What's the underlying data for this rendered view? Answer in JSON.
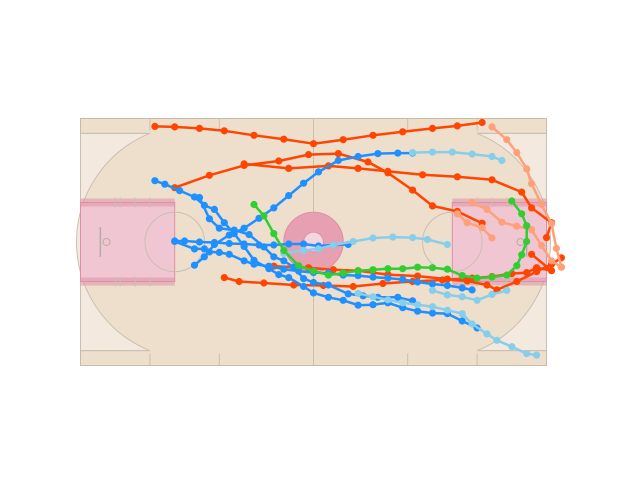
{
  "chart_data": {
    "type": "scatter",
    "title": "",
    "xlabel": "",
    "ylabel": "",
    "court": {
      "length_ft": 94,
      "width_ft": 50,
      "grid": false,
      "colors": {
        "floor": "#eddfcc",
        "arc_area": "#f3e9df",
        "paint": "#f0c6d3",
        "paint_border": "#de8fa6",
        "center_circle": "#e6a0b2",
        "lines": "#cbbfb0",
        "frame": "#c8bba8"
      }
    },
    "series": [
      {
        "color": "#ff4500",
        "points": [
          [
            15,
            48.4
          ],
          [
            19,
            48.3
          ],
          [
            24,
            48.0
          ],
          [
            29,
            47.5
          ],
          [
            35,
            46.6
          ],
          [
            41,
            45.8
          ],
          [
            47,
            44.9
          ],
          [
            53,
            45.7
          ],
          [
            59,
            46.6
          ],
          [
            65,
            47.3
          ],
          [
            71,
            48.0
          ],
          [
            76,
            48.5
          ],
          [
            81,
            49.2
          ]
        ]
      },
      {
        "color": "#ff4500",
        "points": [
          [
            19,
            36.0
          ],
          [
            26,
            38.5
          ],
          [
            33,
            40.5
          ],
          [
            40,
            41.4
          ],
          [
            46,
            42.7
          ],
          [
            52,
            42.9
          ],
          [
            58,
            41.2
          ],
          [
            62,
            39.0
          ],
          [
            67,
            35.5
          ],
          [
            71,
            32.3
          ],
          [
            76,
            31.2
          ],
          [
            81,
            28.8
          ]
        ]
      },
      {
        "color": "#ff4500",
        "points": [
          [
            33,
            40.8
          ],
          [
            42,
            39.9
          ],
          [
            50,
            40.4
          ],
          [
            56,
            39.9
          ],
          [
            62,
            39.3
          ],
          [
            69,
            38.6
          ],
          [
            76,
            38.2
          ],
          [
            83,
            37.6
          ],
          [
            89,
            35.1
          ],
          [
            91,
            31.9
          ],
          [
            95,
            28.9
          ],
          [
            94,
            25.9
          ]
        ]
      },
      {
        "color": "#ff4500",
        "points": [
          [
            39,
            20.1
          ],
          [
            46,
            19.8
          ],
          [
            51,
            19.4
          ],
          [
            56,
            19.2
          ],
          [
            62,
            18.4
          ],
          [
            68,
            18.1
          ],
          [
            74,
            17.5
          ],
          [
            78,
            17.1
          ],
          [
            82,
            16.3
          ],
          [
            84,
            15.3
          ],
          [
            88,
            17.0
          ],
          [
            92,
            19.0
          ],
          [
            95,
            20.5
          ],
          [
            97,
            21.8
          ]
        ]
      },
      {
        "color": "#ff4500",
        "points": [
          [
            29,
            17.8
          ],
          [
            32,
            17.0
          ],
          [
            37,
            16.7
          ],
          [
            43,
            16.3
          ],
          [
            49,
            16.2
          ],
          [
            55,
            16.0
          ],
          [
            61,
            16.6
          ],
          [
            67,
            17.0
          ],
          [
            73,
            17.3
          ],
          [
            79,
            17.7
          ],
          [
            83,
            18.0
          ],
          [
            87,
            18.6
          ],
          [
            90,
            18.8
          ],
          [
            92,
            19.8
          ],
          [
            95,
            19.2
          ],
          [
            91,
            22.5
          ]
        ]
      },
      {
        "color": "#ffa07a",
        "points": [
          [
            83,
            48.3
          ],
          [
            86,
            45.7
          ],
          [
            88,
            43.1
          ],
          [
            90,
            39.8
          ],
          [
            91,
            36.8
          ],
          [
            93,
            32.6
          ],
          [
            95,
            28.7
          ],
          [
            96,
            23.7
          ],
          [
            97,
            19.9
          ]
        ]
      },
      {
        "color": "#ffa07a",
        "points": [
          [
            76,
            30.7
          ],
          [
            78,
            28.9
          ],
          [
            81,
            27.9
          ],
          [
            83,
            25.8
          ]
        ]
      },
      {
        "color": "#ffa07a",
        "points": [
          [
            79,
            33.0
          ],
          [
            82,
            31.6
          ],
          [
            85,
            29.0
          ],
          [
            88,
            28.2
          ],
          [
            91,
            27.5
          ],
          [
            93,
            24.3
          ],
          [
            95,
            21.2
          ],
          [
            97,
            19.9
          ]
        ]
      },
      {
        "color": "#1e90ff",
        "points": [
          [
            15,
            37.4
          ],
          [
            17,
            36.7
          ],
          [
            20,
            35.4
          ],
          [
            23,
            34.1
          ],
          [
            25,
            32.4
          ],
          [
            27,
            31.6
          ],
          [
            29,
            28.9
          ],
          [
            31,
            26.7
          ],
          [
            33,
            24.1
          ],
          [
            35,
            21.3
          ],
          [
            38,
            19.6
          ],
          [
            40,
            18.4
          ],
          [
            42,
            17.8
          ],
          [
            45,
            16.0
          ],
          [
            47,
            14.7
          ],
          [
            50,
            13.8
          ],
          [
            53,
            13.2
          ],
          [
            56,
            12.2
          ],
          [
            59,
            12.3
          ],
          [
            62,
            12.7
          ],
          [
            65,
            11.7
          ],
          [
            68,
            11.0
          ],
          [
            71,
            10.6
          ],
          [
            74,
            10.5
          ],
          [
            77,
            9.0
          ],
          [
            80,
            7.6
          ]
        ]
      },
      {
        "color": "#1e90ff",
        "points": [
          [
            24,
            34.0
          ],
          [
            26,
            29.7
          ],
          [
            28,
            27.8
          ],
          [
            31,
            27.4
          ],
          [
            34,
            26.5
          ],
          [
            37,
            24.0
          ],
          [
            39,
            22.0
          ],
          [
            41,
            21.2
          ],
          [
            43,
            19.9
          ],
          [
            45,
            17.6
          ],
          [
            47,
            16.8
          ],
          [
            50,
            16.3
          ],
          [
            54,
            14.5
          ],
          [
            57,
            14.1
          ],
          [
            60,
            13.8
          ],
          [
            64,
            13.8
          ],
          [
            67,
            13.1
          ]
        ]
      },
      {
        "color": "#1e90ff",
        "points": [
          [
            19,
            25.2
          ],
          [
            21,
            25.2
          ],
          [
            24,
            25.0
          ],
          [
            27,
            24.9
          ],
          [
            30,
            24.7
          ],
          [
            33,
            24.6
          ],
          [
            36,
            24.4
          ],
          [
            39,
            24.4
          ],
          [
            42,
            24.6
          ],
          [
            45,
            24.6
          ],
          [
            48,
            24.2
          ],
          [
            51,
            24.4
          ],
          [
            54,
            24.5
          ]
        ]
      },
      {
        "color": "#1e90ff",
        "points": [
          [
            23,
            20.3
          ],
          [
            25,
            22.0
          ],
          [
            27,
            24.5
          ],
          [
            30,
            26.4
          ],
          [
            33,
            27.8
          ],
          [
            36,
            29.8
          ],
          [
            39,
            31.9
          ],
          [
            42,
            34.4
          ],
          [
            45,
            36.9
          ],
          [
            48,
            39.2
          ],
          [
            52,
            41.5
          ],
          [
            56,
            42.3
          ],
          [
            60,
            42.9
          ],
          [
            64,
            43.0
          ],
          [
            67,
            43.0
          ]
        ]
      },
      {
        "color": "#1e90ff",
        "points": [
          [
            19,
            25.1
          ],
          [
            23,
            23.6
          ],
          [
            25,
            23.6
          ],
          [
            26,
            23.0
          ],
          [
            28,
            22.9
          ],
          [
            30,
            22.5
          ],
          [
            33,
            21.2
          ],
          [
            35,
            20.5
          ],
          [
            38,
            20.1
          ],
          [
            41,
            19.5
          ],
          [
            44,
            19.1
          ],
          [
            47,
            18.8
          ],
          [
            50,
            18.7
          ],
          [
            53,
            18.3
          ],
          [
            56,
            18.2
          ],
          [
            59,
            17.9
          ],
          [
            62,
            17.7
          ],
          [
            65,
            17.4
          ],
          [
            68,
            16.9
          ],
          [
            71,
            16.5
          ],
          [
            74,
            16.2
          ],
          [
            77,
            15.7
          ],
          [
            79,
            15.3
          ]
        ]
      },
      {
        "color": "#87ceeb",
        "points": [
          [
            41,
            22.7
          ],
          [
            45,
            23.3
          ],
          [
            48,
            23.6
          ],
          [
            51,
            24.4
          ],
          [
            55,
            25.1
          ],
          [
            59,
            25.8
          ],
          [
            63,
            26.0
          ],
          [
            67,
            25.9
          ],
          [
            70,
            25.5
          ],
          [
            74,
            24.5
          ]
        ]
      },
      {
        "color": "#87ceeb",
        "points": [
          [
            67,
            43.1
          ],
          [
            71,
            43.2
          ],
          [
            75,
            43.2
          ],
          [
            79,
            42.8
          ],
          [
            83,
            42.3
          ],
          [
            85,
            41.5
          ]
        ]
      },
      {
        "color": "#87ceeb",
        "points": [
          [
            71,
            15.2
          ],
          [
            74,
            14.3
          ],
          [
            77,
            13.9
          ],
          [
            80,
            13.2
          ],
          [
            83,
            14.4
          ],
          [
            86,
            15.2
          ]
        ]
      },
      {
        "color": "#87ceeb",
        "points": [
          [
            56,
            14.6
          ],
          [
            59,
            13.9
          ],
          [
            62,
            13.3
          ],
          [
            65,
            12.7
          ],
          [
            68,
            12.3
          ],
          [
            71,
            11.9
          ],
          [
            74,
            11.2
          ],
          [
            77,
            10.5
          ],
          [
            79,
            8.4
          ],
          [
            82,
            6.4
          ],
          [
            84,
            5.1
          ],
          [
            87,
            3.8
          ],
          [
            90,
            2.4
          ],
          [
            92,
            2.1
          ]
        ]
      },
      {
        "color": "#32cd32",
        "points": [
          [
            35,
            32.6
          ],
          [
            37,
            30.3
          ],
          [
            39,
            26.7
          ],
          [
            41,
            23.3
          ],
          [
            44,
            20.2
          ],
          [
            47,
            19.1
          ],
          [
            50,
            18.3
          ],
          [
            53,
            18.7
          ],
          [
            56,
            19.2
          ],
          [
            59,
            19.4
          ],
          [
            62,
            19.6
          ],
          [
            65,
            19.6
          ],
          [
            68,
            19.9
          ],
          [
            71,
            19.8
          ],
          [
            74,
            19.5
          ],
          [
            77,
            18.2
          ],
          [
            80,
            17.7
          ],
          [
            83,
            17.9
          ],
          [
            86,
            18.3
          ],
          [
            88,
            20.2
          ],
          [
            89,
            22.4
          ],
          [
            90,
            25.1
          ],
          [
            90,
            28.3
          ],
          [
            89,
            30.7
          ],
          [
            87,
            33.3
          ]
        ]
      }
    ]
  }
}
